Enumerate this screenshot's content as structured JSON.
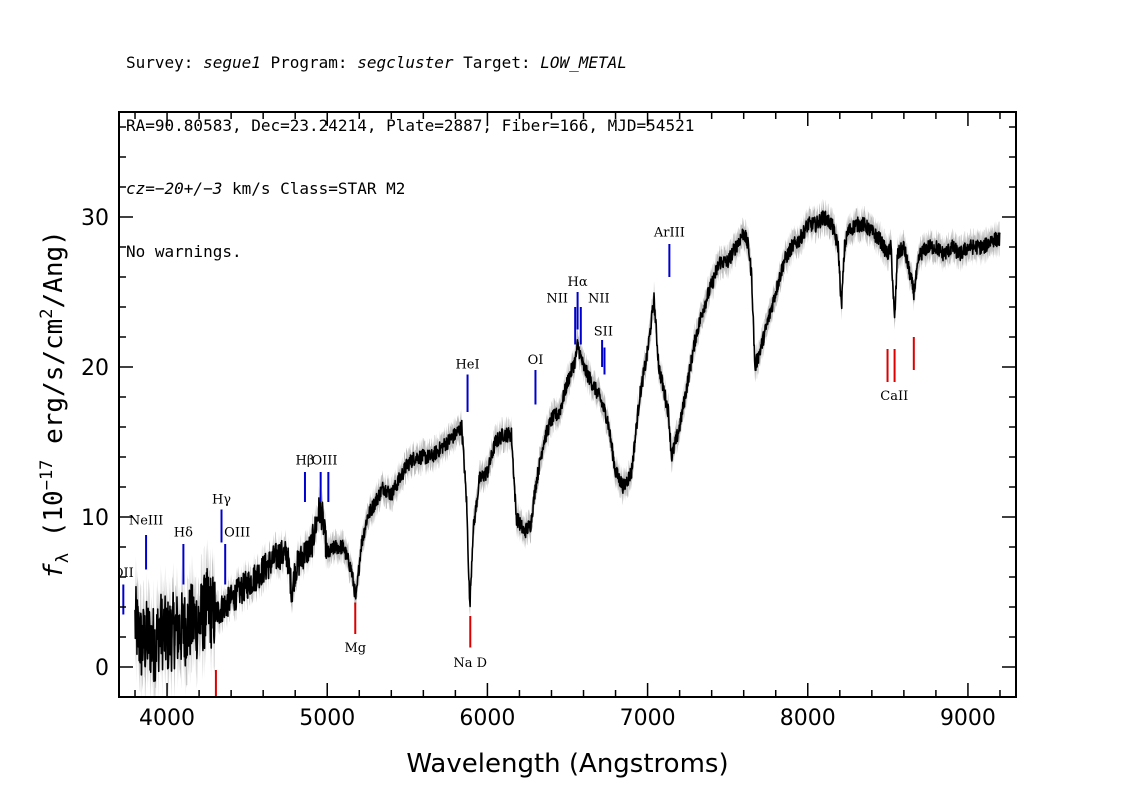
{
  "header": {
    "line1": {
      "survey_label": "Survey: ",
      "survey_value": "segue1",
      "program_label": " Program: ",
      "program_value": "segcluster",
      "target_label": " Target: ",
      "target_value": "LOW_METAL"
    },
    "line2": "RA=90.80583, Dec=23.24214, Plate=2887, Fiber=166, MJD=54521",
    "line3": {
      "cz_label": "cz",
      "cz_value": "=−20+/−3",
      "cz_rest": " km/s Class=STAR M2"
    },
    "line4": "No warnings."
  },
  "chart_data": {
    "type": "line",
    "xlabel": "Wavelength (Angstroms)",
    "ylabel": "f_λ (10^-17 erg/s/cm^2/Ang)",
    "ylabel_parts": {
      "f": "f",
      "sub": "λ",
      "a": " (10",
      "exp": "−17",
      "b": " erg/s/cm",
      "exp2": "2",
      "c": "/Ang)"
    },
    "xlim": [
      3700,
      9300
    ],
    "ylim": [
      -2,
      37
    ],
    "x_ticks": [
      4000,
      5000,
      6000,
      7000,
      8000,
      9000
    ],
    "x_tick_labels": [
      "4000",
      "5000",
      "6000",
      "7000",
      "8000",
      "9000"
    ],
    "y_ticks": [
      0,
      10,
      20,
      30
    ],
    "y_tick_labels": [
      "0",
      "10",
      "20",
      "30"
    ],
    "colors": {
      "spectrum": "#000000",
      "error": "#bbbbbb",
      "emission": "#0000cc",
      "absorption": "#dd0000"
    },
    "spectrum_anchors": [
      [
        3800,
        3
      ],
      [
        3840,
        1.5
      ],
      [
        3880,
        2
      ],
      [
        3920,
        1.5
      ],
      [
        3960,
        2.5
      ],
      [
        4000,
        2
      ],
      [
        4050,
        2.5
      ],
      [
        4100,
        2.5
      ],
      [
        4150,
        3
      ],
      [
        4200,
        3
      ],
      [
        4250,
        4
      ],
      [
        4300,
        3.5
      ],
      [
        4350,
        4
      ],
      [
        4400,
        4.5
      ],
      [
        4450,
        5
      ],
      [
        4500,
        5.5
      ],
      [
        4550,
        6
      ],
      [
        4600,
        6.5
      ],
      [
        4650,
        7
      ],
      [
        4700,
        7.5
      ],
      [
        4750,
        7.5
      ],
      [
        4780,
        5
      ],
      [
        4800,
        6.5
      ],
      [
        4850,
        7.5
      ],
      [
        4900,
        8
      ],
      [
        4950,
        10.5
      ],
      [
        4970,
        10
      ],
      [
        5000,
        7.5
      ],
      [
        5050,
        8
      ],
      [
        5100,
        8
      ],
      [
        5150,
        6.5
      ],
      [
        5180,
        4.5
      ],
      [
        5210,
        8
      ],
      [
        5250,
        10
      ],
      [
        5300,
        11
      ],
      [
        5350,
        12
      ],
      [
        5400,
        11.5
      ],
      [
        5450,
        12.5
      ],
      [
        5500,
        13.5
      ],
      [
        5550,
        14
      ],
      [
        5600,
        14
      ],
      [
        5650,
        14
      ],
      [
        5700,
        14.5
      ],
      [
        5750,
        15
      ],
      [
        5800,
        15.5
      ],
      [
        5840,
        16
      ],
      [
        5870,
        11
      ],
      [
        5890,
        4
      ],
      [
        5910,
        9
      ],
      [
        5950,
        12.5
      ],
      [
        6000,
        13
      ],
      [
        6050,
        15
      ],
      [
        6100,
        15.5
      ],
      [
        6150,
        15.5
      ],
      [
        6180,
        10
      ],
      [
        6230,
        9
      ],
      [
        6270,
        9.5
      ],
      [
        6300,
        12
      ],
      [
        6350,
        15
      ],
      [
        6400,
        16.5
      ],
      [
        6450,
        17
      ],
      [
        6500,
        19
      ],
      [
        6550,
        20.5
      ],
      [
        6563,
        21.5
      ],
      [
        6600,
        20
      ],
      [
        6650,
        19
      ],
      [
        6700,
        18
      ],
      [
        6750,
        16.5
      ],
      [
        6800,
        13
      ],
      [
        6850,
        12
      ],
      [
        6900,
        13
      ],
      [
        6950,
        18
      ],
      [
        7000,
        21
      ],
      [
        7040,
        24.5
      ],
      [
        7070,
        20
      ],
      [
        7100,
        18.5
      ],
      [
        7130,
        17
      ],
      [
        7150,
        14
      ],
      [
        7200,
        16
      ],
      [
        7250,
        19
      ],
      [
        7300,
        22
      ],
      [
        7350,
        24
      ],
      [
        7400,
        25.5
      ],
      [
        7450,
        27
      ],
      [
        7500,
        27
      ],
      [
        7550,
        28
      ],
      [
        7600,
        29
      ],
      [
        7630,
        28
      ],
      [
        7650,
        26
      ],
      [
        7670,
        20
      ],
      [
        7700,
        21
      ],
      [
        7750,
        23
      ],
      [
        7800,
        25
      ],
      [
        7850,
        27
      ],
      [
        7900,
        28
      ],
      [
        7950,
        28.5
      ],
      [
        8000,
        29.5
      ],
      [
        8050,
        29.5
      ],
      [
        8100,
        30
      ],
      [
        8150,
        29.5
      ],
      [
        8190,
        28
      ],
      [
        8210,
        24
      ],
      [
        8230,
        28
      ],
      [
        8250,
        29
      ],
      [
        8300,
        29.5
      ],
      [
        8350,
        29.5
      ],
      [
        8400,
        29
      ],
      [
        8450,
        28.5
      ],
      [
        8498,
        27.5
      ],
      [
        8520,
        28
      ],
      [
        8542,
        23
      ],
      [
        8560,
        27.5
      ],
      [
        8600,
        28
      ],
      [
        8662,
        25
      ],
      [
        8700,
        27.5
      ],
      [
        8750,
        28
      ],
      [
        8800,
        28
      ],
      [
        8850,
        27.5
      ],
      [
        8900,
        28
      ],
      [
        8950,
        27.5
      ],
      [
        9000,
        28
      ],
      [
        9050,
        28
      ],
      [
        9100,
        28
      ],
      [
        9150,
        28.5
      ],
      [
        9200,
        28.5
      ]
    ],
    "emission_lines": [
      {
        "name": "OII",
        "wave": 3727,
        "y0": 3.5,
        "y1": 5.5,
        "label_y": 6
      },
      {
        "name": "NeIII",
        "wave": 3869,
        "y0": 6.5,
        "y1": 8.8,
        "label_y": 9.5
      },
      {
        "name": "Hδ",
        "wave": 4102,
        "y0": 5.5,
        "y1": 8.2,
        "label_y": 8.7
      },
      {
        "name": "Hγ",
        "wave": 4340,
        "y0": 8.3,
        "y1": 10.5,
        "label_y": 10.9
      },
      {
        "name": "OIII",
        "wave": 4363,
        "y0": 5.5,
        "y1": 8.2,
        "label_y": 8.7
      },
      {
        "name": "Hβ",
        "wave": 4861,
        "y0": 11,
        "y1": 13,
        "label_y": 13.5
      },
      {
        "name": "OIII",
        "wave": 4959,
        "y0": 11,
        "y1": 13,
        "label_y": 13.5
      },
      {
        "name": "OIII",
        "wave": 5007,
        "y0": 11,
        "y1": 13,
        "label_y": 13.5
      },
      {
        "name": "HeI",
        "wave": 5876,
        "y0": 17,
        "y1": 19.5,
        "label_y": 19.9
      },
      {
        "name": "OI",
        "wave": 6300,
        "y0": 17.5,
        "y1": 19.8,
        "label_y": 20.2
      },
      {
        "name": "NII",
        "wave": 6548,
        "y0": 21.5,
        "y1": 24,
        "label_y": 24.3
      },
      {
        "name": "Hα",
        "wave": 6563,
        "y0": 22.5,
        "y1": 25,
        "label_y": 25.4
      },
      {
        "name": "NII",
        "wave": 6583,
        "y0": 21.5,
        "y1": 24,
        "label_y": 24.3
      },
      {
        "name": "SII",
        "wave": 6716,
        "y0": 20,
        "y1": 21.8,
        "label_y": 22.1
      },
      {
        "name": "SII",
        "wave": 6731,
        "y0": 19.5,
        "y1": 21.3,
        "label_y": 22.1
      },
      {
        "name": "ArIII",
        "wave": 7136,
        "y0": 26,
        "y1": 28.2,
        "label_y": 28.7
      }
    ],
    "emission_label_text": {
      "OII": "OII",
      "NeIII": "NeIII",
      "Hd": "Hδ",
      "Hg": "Hγ",
      "OIII": "OIII",
      "Hb": "Hβ",
      "HeI": "HeI",
      "OI": "OI",
      "NII": "NII",
      "Ha": "Hα",
      "SII": "SII",
      "ArIII": "ArIII"
    },
    "absorption_lines": [
      {
        "name": "Mg",
        "wave": 5175,
        "y0": 2.2,
        "y1": 4.3,
        "label_y": 1.0
      },
      {
        "name": "Na D",
        "wave": 5893,
        "y0": 1.3,
        "y1": 3.4,
        "label_y": 0.0
      },
      {
        "name": "CaII",
        "wave": 8498,
        "y0": 19,
        "y1": 21.2,
        "label_y": 17.8
      },
      {
        "name": "CaII",
        "wave": 8542,
        "y0": 19,
        "y1": 21.2,
        "label_y": 17.8
      },
      {
        "name": "CaII",
        "wave": 8662,
        "y0": 19.8,
        "y1": 22,
        "label_y": 17.8
      },
      {
        "name": "",
        "wave": 4305,
        "y0": -2,
        "y1": -0.2,
        "label_y": -2
      }
    ]
  }
}
